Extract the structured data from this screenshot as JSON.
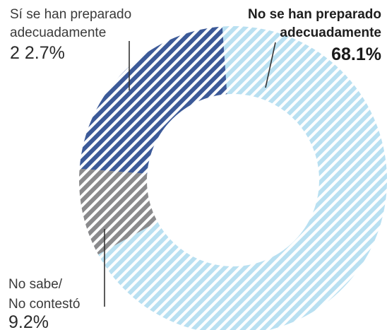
{
  "chart_data": {
    "type": "pie",
    "donut": true,
    "slices": [
      {
        "label_lines": [
          "No se han preparado",
          "adecuadamente"
        ],
        "value_text": "68.1%",
        "value": 68.1,
        "color": "#b9e0f1",
        "emphasis": true
      },
      {
        "label_lines": [
          "No sabe/",
          "No contestó"
        ],
        "value_text": "9.2%",
        "value": 9.2,
        "color": "#8a8a8c",
        "emphasis": false
      },
      {
        "label_lines": [
          "Sí se han preparado",
          "adecuadamente"
        ],
        "value_text": "2 2.7%",
        "value": 22.7,
        "color": "#3c5a98",
        "emphasis": false
      }
    ],
    "hatched": true,
    "legend": "none"
  }
}
